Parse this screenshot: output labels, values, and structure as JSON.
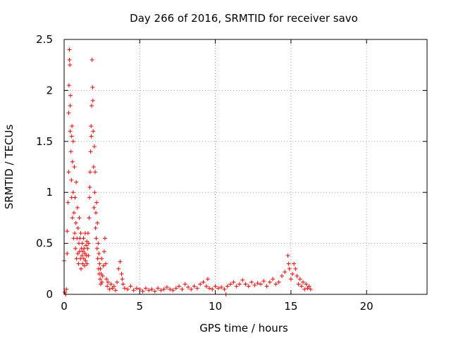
{
  "chart_data": {
    "type": "scatter",
    "title": "Day 266 of 2016, SRMTID for receiver savo",
    "xlabel": "GPS time / hours",
    "ylabel": "SRMTID / TECUs",
    "xlim": [
      0,
      24
    ],
    "ylim": [
      0,
      2.5
    ],
    "x_ticks": [
      0,
      5,
      10,
      15,
      20
    ],
    "x_tick_labels": [
      "0",
      "5",
      "10",
      "15",
      "20"
    ],
    "y_ticks": [
      0,
      0.5,
      1,
      1.5,
      2,
      2.5
    ],
    "y_tick_labels": [
      "0",
      "0.5",
      "1",
      "1.5",
      "2",
      "2.5"
    ],
    "grid": true,
    "marker": "+",
    "series": [
      {
        "name": "SRMTID",
        "color": "#ff0000",
        "points": [
          [
            0.0,
            0.33
          ],
          [
            0.05,
            0.02
          ],
          [
            0.1,
            0.0
          ],
          [
            0.15,
            0.05
          ],
          [
            0.2,
            0.4
          ],
          [
            0.2,
            0.62
          ],
          [
            0.25,
            0.9
          ],
          [
            0.3,
            1.2
          ],
          [
            0.3,
            1.78
          ],
          [
            0.32,
            2.05
          ],
          [
            0.35,
            2.4
          ],
          [
            0.35,
            2.3
          ],
          [
            0.38,
            2.25
          ],
          [
            0.4,
            1.85
          ],
          [
            0.4,
            1.6
          ],
          [
            0.42,
            1.95
          ],
          [
            0.45,
            1.4
          ],
          [
            0.48,
            1.12
          ],
          [
            0.5,
            0.95
          ],
          [
            0.5,
            1.55
          ],
          [
            0.52,
            1.65
          ],
          [
            0.55,
            0.75
          ],
          [
            0.55,
            1.3
          ],
          [
            0.6,
            1.0
          ],
          [
            0.6,
            1.5
          ],
          [
            0.62,
            0.55
          ],
          [
            0.65,
            0.8
          ],
          [
            0.68,
            1.25
          ],
          [
            0.7,
            0.6
          ],
          [
            0.72,
            0.95
          ],
          [
            0.75,
            0.45
          ],
          [
            0.78,
            0.7
          ],
          [
            0.8,
            1.1
          ],
          [
            0.82,
            0.35
          ],
          [
            0.85,
            0.55
          ],
          [
            0.88,
            0.85
          ],
          [
            0.9,
            0.4
          ],
          [
            0.92,
            0.65
          ],
          [
            0.95,
            0.3
          ],
          [
            0.98,
            0.5
          ],
          [
            1.0,
            0.75
          ],
          [
            1.02,
            0.42
          ],
          [
            1.05,
            0.55
          ],
          [
            1.08,
            0.35
          ],
          [
            1.1,
            0.6
          ],
          [
            1.12,
            0.25
          ],
          [
            1.15,
            0.45
          ],
          [
            1.18,
            0.38
          ],
          [
            1.2,
            0.5
          ],
          [
            1.22,
            0.3
          ],
          [
            1.25,
            0.42
          ],
          [
            1.28,
            0.55
          ],
          [
            1.3,
            0.35
          ],
          [
            1.32,
            0.45
          ],
          [
            1.35,
            0.28
          ],
          [
            1.38,
            0.4
          ],
          [
            1.4,
            0.6
          ],
          [
            1.42,
            0.33
          ],
          [
            1.45,
            0.48
          ],
          [
            1.48,
            0.38
          ],
          [
            1.5,
            0.52
          ],
          [
            1.52,
            0.3
          ],
          [
            1.55,
            0.45
          ],
          [
            1.58,
            0.6
          ],
          [
            1.6,
            0.38
          ],
          [
            1.62,
            0.5
          ],
          [
            1.65,
            0.75
          ],
          [
            1.68,
            0.95
          ],
          [
            1.7,
            1.05
          ],
          [
            1.72,
            1.2
          ],
          [
            1.75,
            1.4
          ],
          [
            1.78,
            1.65
          ],
          [
            1.8,
            1.55
          ],
          [
            1.82,
            1.85
          ],
          [
            1.85,
            2.3
          ],
          [
            1.88,
            2.03
          ],
          [
            1.9,
            1.9
          ],
          [
            1.92,
            1.6
          ],
          [
            1.95,
            1.25
          ],
          [
            1.98,
            0.85
          ],
          [
            2.0,
            1.45
          ],
          [
            2.02,
            1.0
          ],
          [
            2.05,
            1.2
          ],
          [
            2.08,
            0.65
          ],
          [
            2.1,
            0.8
          ],
          [
            2.12,
            0.55
          ],
          [
            2.15,
            0.9
          ],
          [
            2.18,
            0.45
          ],
          [
            2.2,
            0.7
          ],
          [
            2.22,
            0.35
          ],
          [
            2.25,
            0.5
          ],
          [
            2.28,
            0.25
          ],
          [
            2.3,
            0.4
          ],
          [
            2.32,
            0.2
          ],
          [
            2.35,
            0.3
          ],
          [
            2.38,
            0.15
          ],
          [
            2.4,
            0.25
          ],
          [
            2.42,
            0.1
          ],
          [
            2.45,
            0.2
          ],
          [
            2.48,
            0.35
          ],
          [
            2.5,
            0.12
          ],
          [
            2.55,
            0.18
          ],
          [
            2.6,
            0.28
          ],
          [
            2.65,
            0.42
          ],
          [
            2.7,
            0.55
          ],
          [
            2.75,
            0.3
          ],
          [
            2.8,
            0.15
          ],
          [
            2.85,
            0.08
          ],
          [
            2.9,
            0.12
          ],
          [
            3.0,
            0.05
          ],
          [
            3.1,
            0.1
          ],
          [
            3.2,
            0.06
          ],
          [
            3.3,
            0.08
          ],
          [
            3.4,
            0.04
          ],
          [
            3.5,
            0.12
          ],
          [
            3.6,
            0.25
          ],
          [
            3.7,
            0.32
          ],
          [
            3.8,
            0.2
          ],
          [
            3.85,
            0.15
          ],
          [
            3.9,
            0.1
          ],
          [
            4.0,
            0.06
          ],
          [
            4.2,
            0.05
          ],
          [
            4.4,
            0.08
          ],
          [
            4.6,
            0.04
          ],
          [
            4.8,
            0.06
          ],
          [
            5.0,
            0.05
          ],
          [
            5.2,
            0.03
          ],
          [
            5.4,
            0.06
          ],
          [
            5.6,
            0.04
          ],
          [
            5.8,
            0.05
          ],
          [
            6.0,
            0.03
          ],
          [
            6.2,
            0.06
          ],
          [
            6.4,
            0.04
          ],
          [
            6.6,
            0.05
          ],
          [
            6.8,
            0.07
          ],
          [
            7.0,
            0.05
          ],
          [
            7.2,
            0.04
          ],
          [
            7.4,
            0.06
          ],
          [
            7.6,
            0.08
          ],
          [
            7.8,
            0.05
          ],
          [
            8.0,
            0.1
          ],
          [
            8.2,
            0.07
          ],
          [
            8.4,
            0.05
          ],
          [
            8.6,
            0.08
          ],
          [
            8.8,
            0.06
          ],
          [
            9.0,
            0.1
          ],
          [
            9.2,
            0.12
          ],
          [
            9.4,
            0.08
          ],
          [
            9.5,
            0.15
          ],
          [
            9.6,
            0.06
          ],
          [
            9.8,
            0.05
          ],
          [
            10.0,
            0.08
          ],
          [
            10.2,
            0.06
          ],
          [
            10.4,
            0.07
          ],
          [
            10.6,
            0.05
          ],
          [
            10.7,
            0.0
          ],
          [
            10.8,
            0.08
          ],
          [
            11.0,
            0.1
          ],
          [
            11.2,
            0.12
          ],
          [
            11.4,
            0.08
          ],
          [
            11.6,
            0.1
          ],
          [
            11.8,
            0.14
          ],
          [
            12.0,
            0.1
          ],
          [
            12.2,
            0.08
          ],
          [
            12.4,
            0.12
          ],
          [
            12.6,
            0.09
          ],
          [
            12.8,
            0.11
          ],
          [
            13.0,
            0.1
          ],
          [
            13.2,
            0.13
          ],
          [
            13.4,
            0.08
          ],
          [
            13.6,
            0.12
          ],
          [
            13.8,
            0.15
          ],
          [
            14.0,
            0.1
          ],
          [
            14.2,
            0.12
          ],
          [
            14.4,
            0.18
          ],
          [
            14.6,
            0.22
          ],
          [
            14.8,
            0.38
          ],
          [
            14.85,
            0.3
          ],
          [
            14.9,
            0.25
          ],
          [
            15.0,
            0.15
          ],
          [
            15.1,
            0.2
          ],
          [
            15.2,
            0.3
          ],
          [
            15.3,
            0.25
          ],
          [
            15.4,
            0.18
          ],
          [
            15.5,
            0.1
          ],
          [
            15.6,
            0.15
          ],
          [
            15.7,
            0.08
          ],
          [
            15.8,
            0.12
          ],
          [
            15.9,
            0.05
          ],
          [
            16.0,
            0.1
          ],
          [
            16.1,
            0.06
          ],
          [
            16.2,
            0.08
          ],
          [
            16.3,
            0.05
          ]
        ]
      }
    ]
  }
}
